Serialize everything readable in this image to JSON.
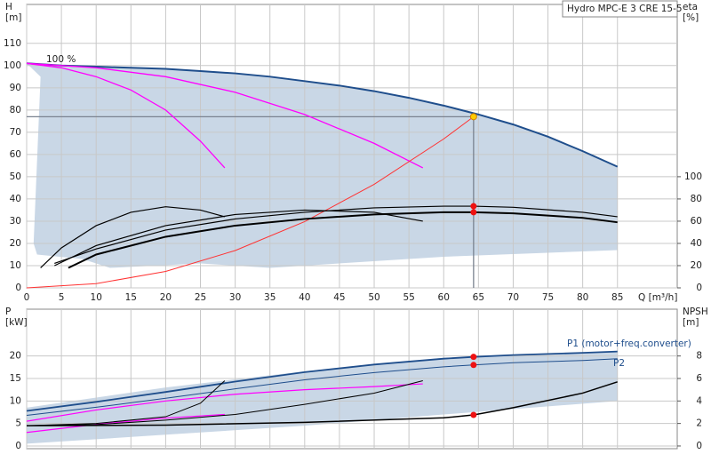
{
  "chart_data": [
    {
      "type": "line",
      "title": "Hydro MPC-E 3 CRE 15-5",
      "ylabel": [
        "H",
        "[m]"
      ],
      "y2label": [
        "eta",
        "[%]"
      ],
      "xlabel": "Q [m³/h]",
      "annotation": "100 %",
      "xlim": [
        0,
        93.6
      ],
      "xticks": [
        0,
        5,
        10,
        15,
        20,
        25,
        30,
        35,
        40,
        45,
        50,
        55,
        60,
        65,
        70,
        75,
        80,
        85
      ],
      "ylim": [
        0,
        127.5
      ],
      "yticks": [
        0,
        10,
        20,
        30,
        40,
        50,
        60,
        70,
        80,
        90,
        100,
        110
      ],
      "y2lim": [
        0,
        255
      ],
      "y2ticks": [
        0,
        20,
        40,
        60,
        80,
        100
      ],
      "grid": true,
      "area": {
        "color": "#c9d7e6",
        "x": [
          0,
          5,
          10,
          15,
          20,
          25,
          30,
          35,
          40,
          45,
          50,
          55,
          60,
          65,
          70,
          75,
          80,
          85,
          85,
          60,
          35,
          25,
          12,
          8,
          1.5,
          1,
          2
        ],
        "values": [
          101,
          100,
          99.5,
          99,
          98.5,
          97.5,
          96.5,
          95,
          93,
          91,
          88.5,
          85.5,
          82,
          78,
          73.5,
          68,
          61.5,
          54.5,
          17,
          14,
          9,
          11,
          9,
          13,
          15,
          20,
          95
        ]
      },
      "series": [
        {
          "color": "#1f4e8c",
          "width": 2,
          "x": [
            0,
            5,
            10,
            15,
            20,
            25,
            30,
            35,
            40,
            45,
            50,
            55,
            60,
            65,
            70,
            75,
            80,
            85
          ],
          "values": [
            101,
            100,
            99.5,
            99,
            98.5,
            97.5,
            96.5,
            95,
            93,
            91,
            88.5,
            85.5,
            82,
            78,
            73.5,
            68,
            61.5,
            54.5
          ]
        },
        {
          "color": "#ff00ff",
          "width": 1.3,
          "x": [
            0,
            5,
            10,
            15,
            20,
            25,
            28.5
          ],
          "values": [
            101,
            99,
            95,
            89,
            80,
            66,
            54
          ]
        },
        {
          "color": "#ff00ff",
          "width": 1.3,
          "x": [
            0,
            10,
            20,
            30,
            40,
            50,
            57
          ],
          "values": [
            101,
            99,
            95,
            88,
            78,
            65,
            54
          ]
        },
        {
          "color": "#ff3333",
          "width": 1,
          "x": [
            0,
            10,
            20,
            30,
            40,
            50,
            60,
            64.3
          ],
          "values": [
            0,
            1.9,
            7.4,
            16.8,
            29.8,
            46.6,
            67,
            77
          ]
        },
        {
          "color": "#000000",
          "width": 2,
          "axis": "y2",
          "x": [
            6,
            10,
            20,
            30,
            40,
            50,
            60,
            64.3,
            70,
            80,
            85
          ],
          "values": [
            18,
            30,
            46,
            56,
            62,
            66,
            68,
            68,
            67,
            63,
            59
          ]
        },
        {
          "color": "#000000",
          "width": 1.2,
          "axis": "y2",
          "x": [
            4,
            10,
            20,
            30,
            40,
            50,
            60,
            64.3,
            70,
            80,
            85
          ],
          "values": [
            22,
            35,
            52,
            62,
            68,
            72,
            73.5,
            73.5,
            72.5,
            68,
            64
          ]
        },
        {
          "color": "#000000",
          "width": 1.2,
          "axis": "y2",
          "x": [
            2,
            5,
            10,
            15,
            20,
            25,
            28.5
          ],
          "values": [
            18,
            36,
            56,
            68,
            73,
            70,
            64
          ]
        },
        {
          "color": "#000000",
          "width": 1.2,
          "axis": "y2",
          "x": [
            4,
            10,
            20,
            30,
            40,
            50,
            57
          ],
          "values": [
            20,
            38,
            56,
            66,
            70,
            68,
            60
          ]
        }
      ],
      "points": [
        {
          "x": 64.3,
          "y": 77,
          "color": "#ffcc00"
        },
        {
          "x": 64.3,
          "y": 73.5,
          "axis": "y2",
          "color": "#ee1111"
        },
        {
          "x": 64.3,
          "y": 68,
          "axis": "y2",
          "color": "#ee1111"
        }
      ]
    },
    {
      "type": "line",
      "ylabel": [
        "P",
        "[kW]"
      ],
      "y2label": [
        "NPSH",
        "[m]"
      ],
      "xlim": [
        0,
        93.6
      ],
      "ylim": [
        -0.6,
        30.4
      ],
      "yticks": [
        0,
        5,
        10,
        15,
        20
      ],
      "y2lim": [
        -0.24,
        12.16
      ],
      "y2ticks": [
        0,
        2,
        4,
        6,
        8
      ],
      "grid": true,
      "area": {
        "color": "#c9d7e6",
        "x": [
          0,
          20,
          40,
          60,
          85,
          85,
          60,
          40,
          20,
          0
        ],
        "values": [
          8.5,
          13,
          16.6,
          19.6,
          21,
          10,
          7,
          4.5,
          2.5,
          0.5
        ]
      },
      "series": [
        {
          "name": "P1 (motor+freq.converter)",
          "color": "#1f4e8c",
          "width": 1.8,
          "x": [
            0,
            10,
            20,
            30,
            40,
            50,
            60,
            64.3,
            70,
            80,
            85
          ],
          "values": [
            7.8,
            9.8,
            12,
            14.3,
            16.4,
            18.1,
            19.4,
            19.8,
            20.2,
            20.7,
            21
          ]
        },
        {
          "name": "P2",
          "color": "#1f4e8c",
          "width": 1,
          "x": [
            0,
            10,
            20,
            30,
            40,
            50,
            60,
            64.3,
            70,
            80,
            85
          ],
          "values": [
            6.8,
            8.6,
            10.6,
            12.7,
            14.7,
            16.3,
            17.6,
            18,
            18.5,
            19,
            19.4
          ]
        },
        {
          "color": "#ff00ff",
          "width": 1.2,
          "x": [
            0,
            10,
            20,
            28.5
          ],
          "values": [
            3,
            4.8,
            6.2,
            7
          ]
        },
        {
          "color": "#ff00ff",
          "width": 1.2,
          "x": [
            0,
            10,
            20,
            30,
            40,
            50,
            57
          ],
          "values": [
            5.5,
            8,
            10,
            11.5,
            12.5,
            13.2,
            13.8
          ]
        },
        {
          "color": "#000000",
          "width": 1.5,
          "axis": "y2",
          "x": [
            0,
            20,
            40,
            60,
            64.3,
            70,
            80,
            85
          ],
          "values": [
            1.8,
            1.85,
            2.1,
            2.5,
            2.76,
            3.4,
            4.7,
            5.7
          ]
        },
        {
          "color": "#000000",
          "width": 1,
          "axis": "y2",
          "x": [
            0,
            10,
            20,
            25,
            28.5
          ],
          "values": [
            1.8,
            2,
            2.6,
            3.8,
            5.8
          ]
        },
        {
          "color": "#000000",
          "width": 1,
          "axis": "y2",
          "x": [
            0,
            10,
            20,
            30,
            40,
            50,
            57
          ],
          "values": [
            1.8,
            1.9,
            2.3,
            2.8,
            3.7,
            4.7,
            5.8
          ]
        }
      ],
      "points": [
        {
          "x": 64.3,
          "y": 19.8,
          "color": "#ee1111"
        },
        {
          "x": 64.3,
          "y": 18,
          "color": "#ee1111"
        },
        {
          "x": 64.3,
          "y": 2.76,
          "axis": "y2",
          "color": "#ee1111"
        }
      ]
    }
  ]
}
